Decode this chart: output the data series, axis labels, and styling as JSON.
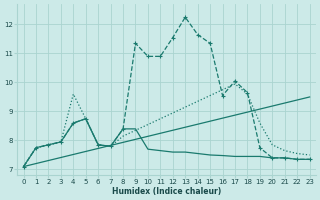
{
  "background_color": "#cceae8",
  "grid_color": "#aad4d0",
  "line_color": "#1a7a6e",
  "xlabel": "Humidex (Indice chaleur)",
  "xlim": [
    -0.5,
    23.5
  ],
  "ylim": [
    6.8,
    12.7
  ],
  "x_ticks": [
    0,
    1,
    2,
    3,
    4,
    5,
    6,
    7,
    8,
    9,
    10,
    11,
    12,
    13,
    14,
    15,
    16,
    17,
    18,
    19,
    20,
    21,
    22,
    23
  ],
  "y_ticks": [
    7,
    8,
    9,
    10,
    11,
    12
  ],
  "curves": [
    {
      "x": [
        0,
        1,
        2,
        3,
        4,
        5,
        6,
        7,
        8,
        9,
        10,
        11,
        12,
        13,
        14,
        15,
        16,
        17,
        18,
        19,
        20,
        21,
        22,
        23
      ],
      "y": [
        7.1,
        7.75,
        7.85,
        7.95,
        9.6,
        8.75,
        7.85,
        7.8,
        8.15,
        8.35,
        8.55,
        8.75,
        8.95,
        9.15,
        9.35,
        9.55,
        9.75,
        9.95,
        9.6,
        8.6,
        7.85,
        7.65,
        7.55,
        7.5
      ],
      "linestyle": "dotted",
      "marker": null,
      "linewidth": 0.9
    },
    {
      "x": [
        0,
        23
      ],
      "y": [
        7.1,
        9.5
      ],
      "linestyle": "solid",
      "marker": null,
      "linewidth": 0.9
    },
    {
      "x": [
        0,
        1,
        2,
        3,
        4,
        5,
        6,
        7,
        8,
        9,
        10,
        11,
        12,
        13,
        14,
        15,
        16,
        17,
        18,
        19,
        20,
        21,
        22,
        23
      ],
      "y": [
        7.1,
        7.75,
        7.85,
        7.95,
        8.6,
        8.75,
        7.85,
        7.8,
        8.4,
        8.4,
        7.7,
        7.65,
        7.6,
        7.6,
        7.55,
        7.5,
        7.48,
        7.45,
        7.45,
        7.45,
        7.4,
        7.4,
        7.35,
        7.35
      ],
      "linestyle": "solid",
      "marker": null,
      "linewidth": 0.9
    },
    {
      "x": [
        0,
        1,
        2,
        3,
        4,
        5,
        6,
        7,
        8,
        9,
        10,
        11,
        12,
        13,
        14,
        15,
        16,
        17,
        18,
        19,
        20,
        21,
        22,
        23
      ],
      "y": [
        7.1,
        7.75,
        7.85,
        7.95,
        8.6,
        8.75,
        7.85,
        7.8,
        8.4,
        11.35,
        10.9,
        10.9,
        11.55,
        12.25,
        11.65,
        11.35,
        9.55,
        10.05,
        9.65,
        7.75,
        7.4,
        7.4,
        7.35,
        7.35
      ],
      "linestyle": "dashed",
      "marker": "+",
      "linewidth": 0.9
    }
  ]
}
